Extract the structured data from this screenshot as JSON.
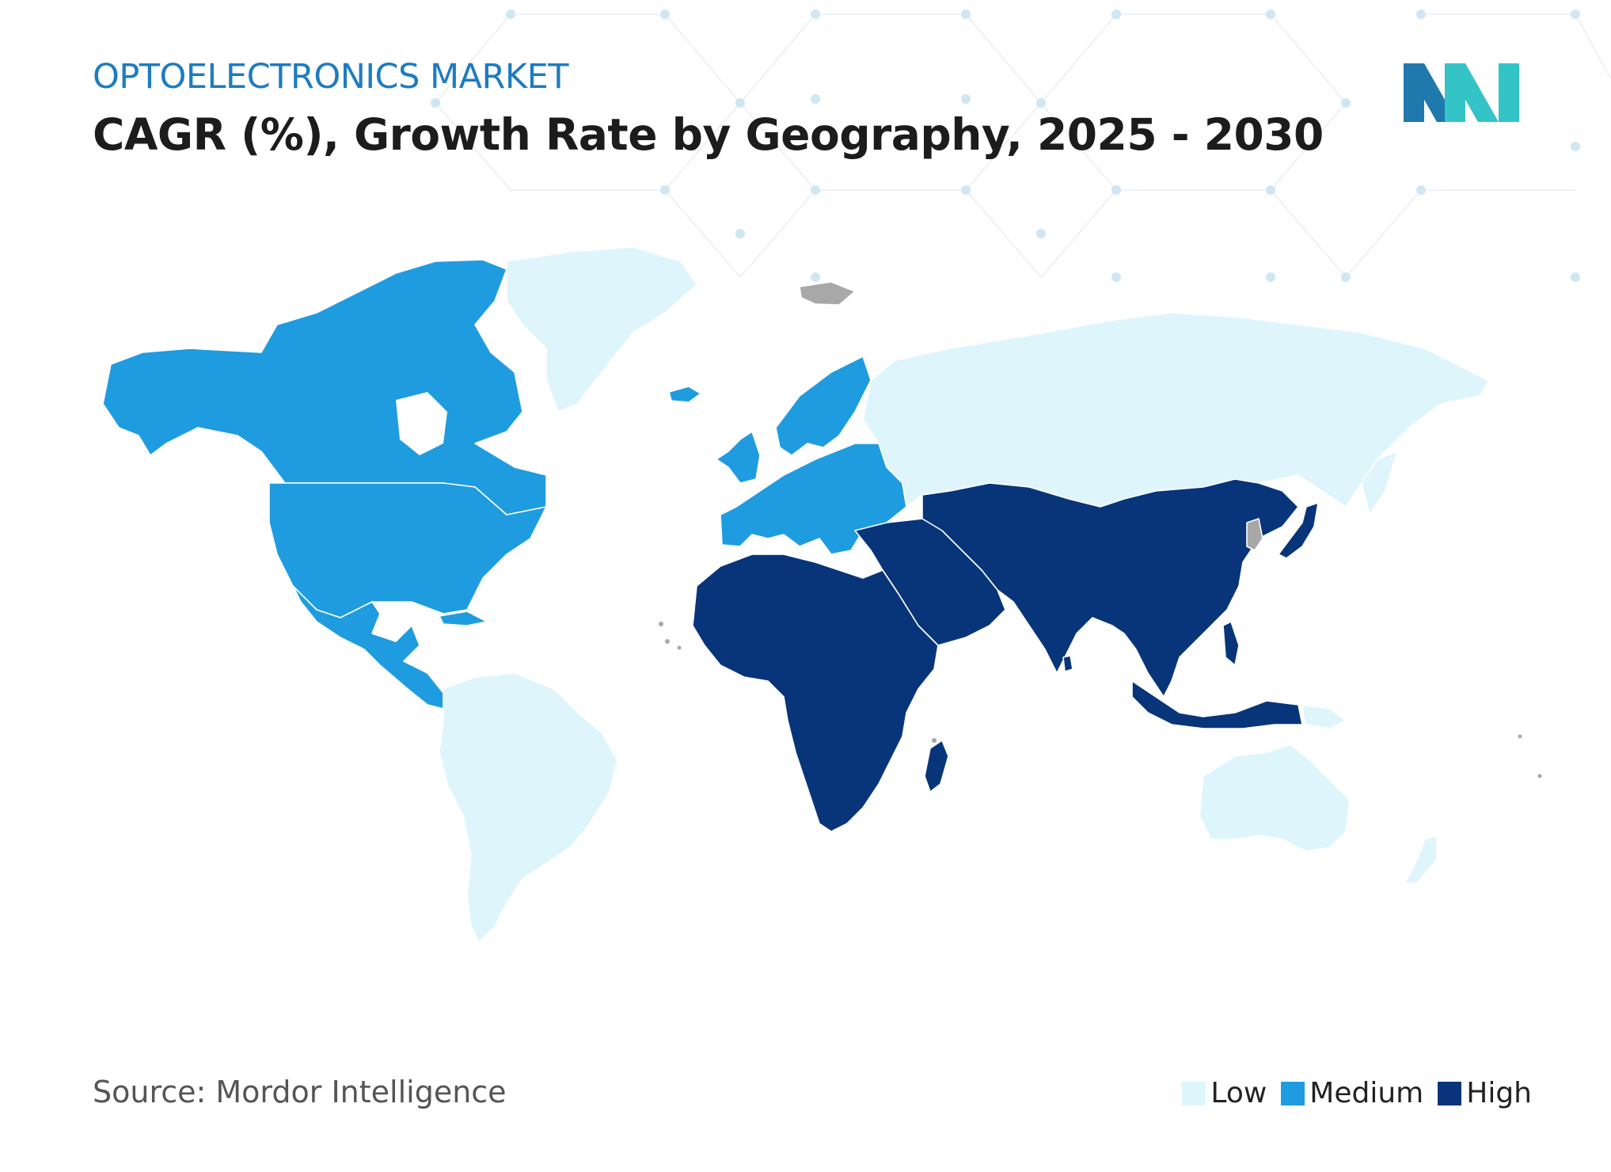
{
  "header": {
    "overline": "OPTOELECTRONICS MARKET",
    "title": "CAGR (%), Growth Rate by Geography, 2025 - 2030"
  },
  "footer": {
    "source": "Source: Mordor Intelligence"
  },
  "colors": {
    "low": "#dff5fc",
    "medium": "#1f9ce0",
    "high": "#08357a",
    "no_data": "#a8a8a8",
    "logo_dark": "#1f79ad",
    "logo_teal": "#34c3c6"
  },
  "legend": [
    {
      "key": "low",
      "label": "Low",
      "color": "#dff5fc"
    },
    {
      "key": "medium",
      "label": "Medium",
      "color": "#1f9ce0"
    },
    {
      "key": "high",
      "label": "High",
      "color": "#08357a"
    }
  ],
  "map_data": {
    "type": "choropleth",
    "regions": [
      {
        "region": "North America",
        "category": "medium"
      },
      {
        "region": "Europe",
        "category": "medium"
      },
      {
        "region": "South America",
        "category": "low"
      },
      {
        "region": "Greenland",
        "category": "low"
      },
      {
        "region": "Russia",
        "category": "low"
      },
      {
        "region": "Australia and New Zealand",
        "category": "low"
      },
      {
        "region": "Asia",
        "category": "high"
      },
      {
        "region": "Middle East",
        "category": "high"
      },
      {
        "region": "Africa",
        "category": "high"
      }
    ]
  }
}
